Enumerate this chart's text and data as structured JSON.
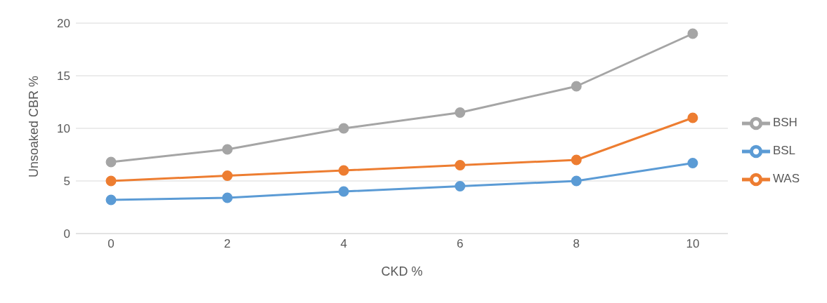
{
  "chart_data": {
    "type": "line",
    "xlabel": "CKD %",
    "ylabel": "Unsoaked CBR %",
    "categories": [
      "0",
      "2",
      "4",
      "6",
      "8",
      "10"
    ],
    "series": [
      {
        "name": "BSL",
        "color": "#5b9bd5",
        "values": [
          3.2,
          3.4,
          4.0,
          4.5,
          5.0,
          6.7
        ]
      },
      {
        "name": "WAS",
        "color": "#ed7d31",
        "values": [
          5.0,
          5.5,
          6.0,
          6.5,
          7.0,
          11.0
        ]
      },
      {
        "name": "BSH",
        "color": "#a5a5a5",
        "values": [
          6.8,
          8.0,
          10.0,
          11.5,
          14.0,
          19.0
        ]
      }
    ],
    "ylim": [
      0,
      20
    ],
    "yticks": [
      0,
      5,
      10,
      15,
      20
    ],
    "grid": "y",
    "legend": "right",
    "marker": "circle",
    "line_style": "solid"
  }
}
